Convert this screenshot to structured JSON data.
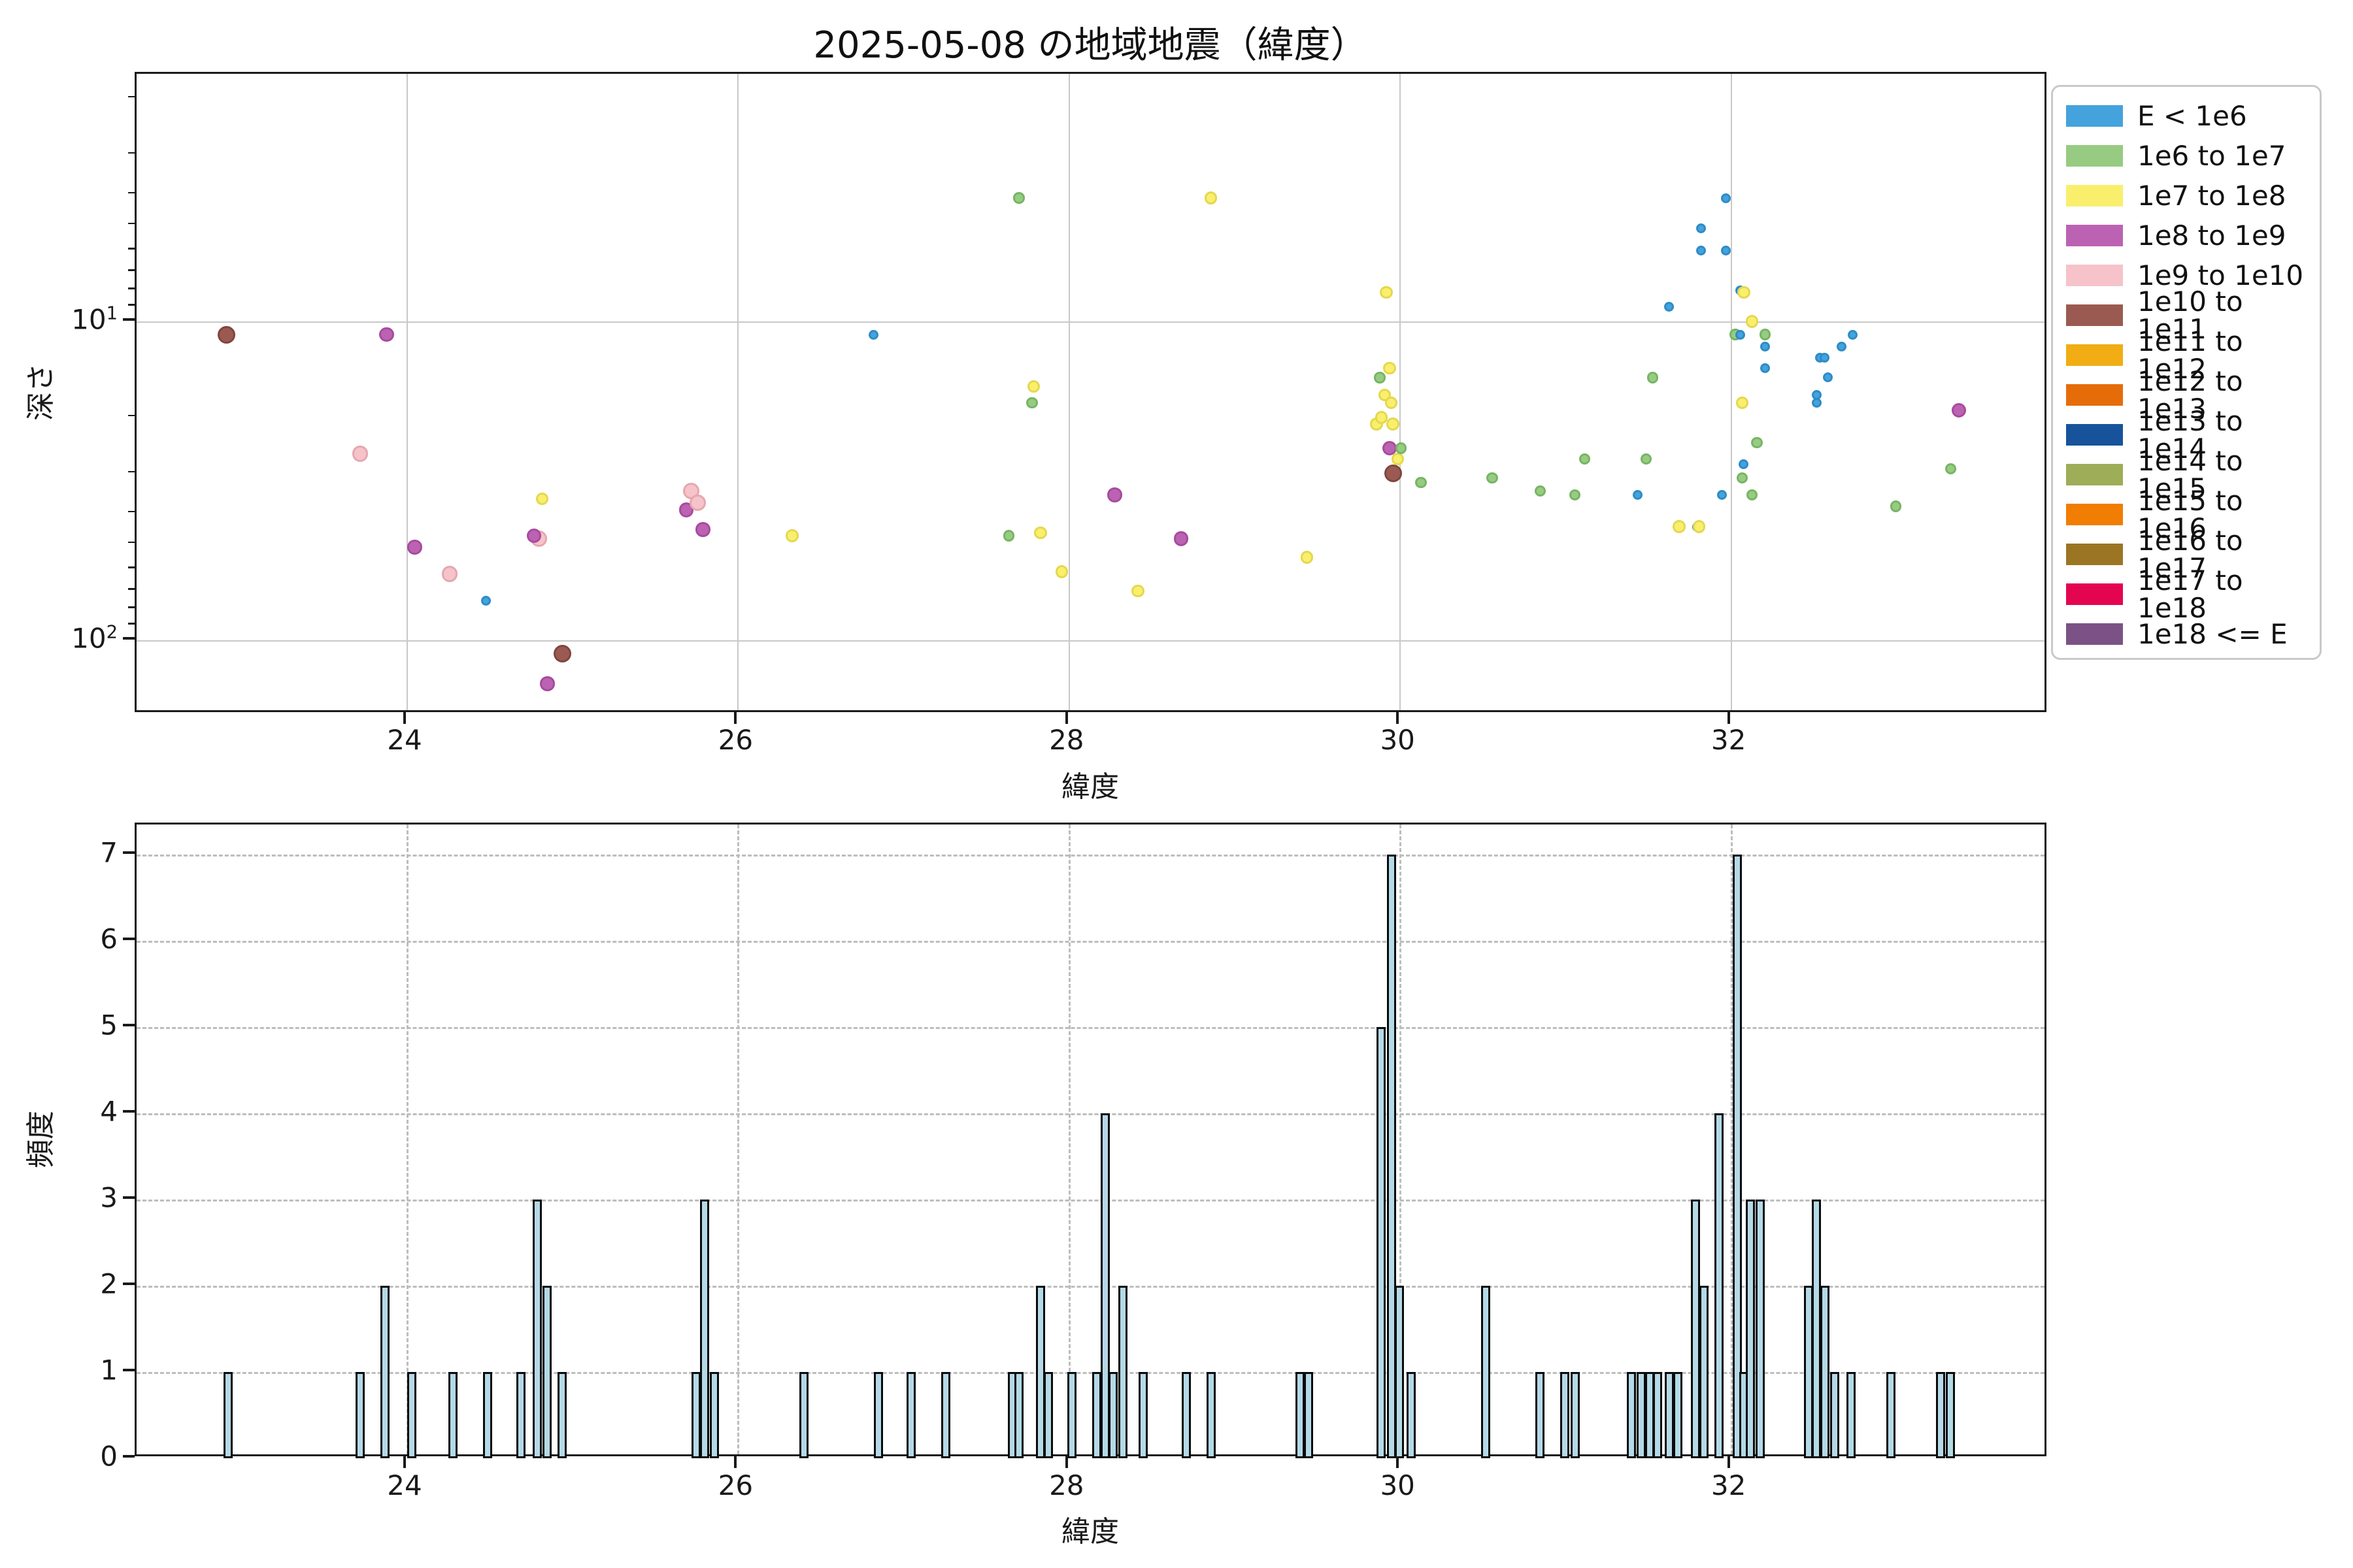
{
  "title": "2025-05-08 の地域地震（緯度）",
  "chart_data": [
    {
      "type": "scatter",
      "title": "2025-05-08 の地域地震（緯度）",
      "xlabel": "緯度",
      "ylabel": "深さ",
      "x_ticks": [
        24,
        26,
        28,
        30,
        32
      ],
      "xlim": [
        22.37,
        33.92
      ],
      "y_scale": "log",
      "y_inverted": true,
      "ylim": [
        1.67,
        170
      ],
      "y_major_ticks": [
        {
          "value": 10,
          "mantissa": "10",
          "exponent": "1"
        },
        {
          "value": 100,
          "mantissa": "10",
          "exponent": "2"
        }
      ],
      "y_minor_ticks": [
        2,
        3,
        4,
        5,
        6,
        7,
        8,
        9,
        20,
        30,
        40,
        50,
        60,
        70,
        80,
        90
      ],
      "grid": "solid",
      "legend_position": "upper right outside",
      "legend": [
        {
          "label": "E < 1e6",
          "color": "#44a2dc",
          "edge": "#2e8cc6",
          "radius": 7.5
        },
        {
          "label": "1e6 to 1e7",
          "color": "#97cb82",
          "edge": "#77b563",
          "radius": 8.7
        },
        {
          "label": "1e7 to 1e8",
          "color": "#f9ef6d",
          "edge": "#e4d84f",
          "radius": 9.8
        },
        {
          "label": "1e8 to 1e9",
          "color": "#bc62b2",
          "edge": "#a74b9d",
          "radius": 11.3
        },
        {
          "label": "1e9 to 1e10",
          "color": "#f5c3c9",
          "edge": "#e5a7af",
          "radius": 12.3
        },
        {
          "label": "1e10 to 1e11",
          "color": "#9b5a51",
          "edge": "#7f463e",
          "radius": 13.5
        },
        {
          "label": "1e11 to 1e12",
          "color": "#f1ad13",
          "edge": "#d99a00",
          "radius": 10
        },
        {
          "label": "1e12 to 1e13",
          "color": "#e66c0a",
          "edge": "#cc5d00",
          "radius": 10
        },
        {
          "label": "1e13 to 1e14",
          "color": "#17539b",
          "edge": "#114684",
          "radius": 10
        },
        {
          "label": "1e14 to 1e15",
          "color": "#9ead57",
          "edge": "#8a9a45",
          "radius": 10
        },
        {
          "label": "1e15 to 1e16",
          "color": "#f17d02",
          "edge": "#d86e00",
          "radius": 10
        },
        {
          "label": "1e16 to 1e17",
          "color": "#9b7524",
          "edge": "#84621c",
          "radius": 10
        },
        {
          "label": "1e17 to 1e18",
          "color": "#e40551",
          "edge": "#c70243",
          "radius": 10
        },
        {
          "label": "1e18 <= E",
          "color": "#7b5286",
          "edge": "#664270",
          "radius": 14
        }
      ],
      "points": [
        [
          22.91,
          11,
          5
        ],
        [
          23.72,
          26,
          4
        ],
        [
          23.88,
          11,
          3
        ],
        [
          24.05,
          51,
          3
        ],
        [
          24.26,
          62,
          4
        ],
        [
          24.48,
          75,
          0
        ],
        [
          24.8,
          48,
          4
        ],
        [
          24.77,
          47,
          3
        ],
        [
          24.82,
          36,
          2
        ],
        [
          24.85,
          137,
          3
        ],
        [
          24.94,
          110,
          5
        ],
        [
          25.69,
          39,
          3
        ],
        [
          25.72,
          34,
          4
        ],
        [
          25.76,
          37,
          4
        ],
        [
          25.79,
          45,
          3
        ],
        [
          26.33,
          47,
          2
        ],
        [
          26.82,
          11,
          0
        ],
        [
          27.64,
          47,
          1
        ],
        [
          27.7,
          4.1,
          1
        ],
        [
          27.78,
          18,
          1
        ],
        [
          27.79,
          16,
          2
        ],
        [
          27.83,
          46,
          2
        ],
        [
          27.96,
          61,
          2
        ],
        [
          28.28,
          35,
          3
        ],
        [
          28.42,
          70,
          2
        ],
        [
          28.68,
          48,
          3
        ],
        [
          28.86,
          4.1,
          2
        ],
        [
          29.44,
          55,
          2
        ],
        [
          29.86,
          21,
          2
        ],
        [
          29.88,
          15,
          1
        ],
        [
          29.89,
          20,
          2
        ],
        [
          29.91,
          17,
          2
        ],
        [
          29.92,
          8.1,
          2
        ],
        [
          29.94,
          14,
          2
        ],
        [
          29.95,
          18,
          2
        ],
        [
          29.96,
          21,
          2
        ],
        [
          29.94,
          25,
          3
        ],
        [
          29.96,
          30,
          5
        ],
        [
          29.99,
          27,
          2
        ],
        [
          30.01,
          25,
          1
        ],
        [
          30.13,
          32,
          1
        ],
        [
          30.56,
          31,
          1
        ],
        [
          30.85,
          34,
          1
        ],
        [
          31.06,
          35,
          1
        ],
        [
          31.12,
          27,
          1
        ],
        [
          31.44,
          35,
          0
        ],
        [
          31.49,
          27,
          1
        ],
        [
          31.53,
          15,
          1
        ],
        [
          31.63,
          9,
          0
        ],
        [
          31.69,
          44,
          2
        ],
        [
          31.8,
          44,
          0
        ],
        [
          31.81,
          44,
          2
        ],
        [
          31.82,
          5.1,
          0
        ],
        [
          31.82,
          6,
          0
        ],
        [
          31.95,
          35,
          0
        ],
        [
          31.97,
          4.1,
          0
        ],
        [
          31.97,
          6,
          0
        ],
        [
          32.03,
          11,
          1
        ],
        [
          32.06,
          8,
          0
        ],
        [
          32.06,
          11,
          0
        ],
        [
          32.07,
          18,
          2
        ],
        [
          32.07,
          31,
          1
        ],
        [
          32.08,
          8.1,
          2
        ],
        [
          32.08,
          28,
          0
        ],
        [
          32.13,
          10,
          2
        ],
        [
          32.13,
          35,
          1
        ],
        [
          32.16,
          24,
          1
        ],
        [
          32.21,
          11,
          1
        ],
        [
          32.21,
          12,
          0
        ],
        [
          32.21,
          14,
          0
        ],
        [
          32.52,
          17,
          0
        ],
        [
          32.52,
          18,
          0
        ],
        [
          32.54,
          13,
          0
        ],
        [
          32.57,
          13,
          0
        ],
        [
          32.59,
          15,
          0
        ],
        [
          32.67,
          12,
          0
        ],
        [
          32.74,
          11,
          0
        ],
        [
          33.0,
          38,
          1
        ],
        [
          33.33,
          29,
          1
        ],
        [
          33.38,
          19,
          3
        ]
      ]
    },
    {
      "type": "bar",
      "xlabel": "緯度",
      "ylabel": "頻度",
      "x_ticks": [
        24,
        26,
        28,
        30,
        32
      ],
      "xlim": [
        22.37,
        33.92
      ],
      "y_ticks": [
        0,
        1,
        2,
        3,
        4,
        5,
        6,
        7
      ],
      "ylim": [
        0,
        7.35
      ],
      "grid": "dashed",
      "bar_color": "#b5d9e7",
      "bar_edge": "#0a0a0a",
      "bars": [
        [
          22.92,
          1
        ],
        [
          23.72,
          1
        ],
        [
          23.87,
          2
        ],
        [
          24.03,
          1
        ],
        [
          24.28,
          1
        ],
        [
          24.49,
          1
        ],
        [
          24.69,
          1
        ],
        [
          24.79,
          3
        ],
        [
          24.85,
          2
        ],
        [
          24.94,
          1
        ],
        [
          25.75,
          1
        ],
        [
          25.8,
          3
        ],
        [
          25.86,
          1
        ],
        [
          26.4,
          1
        ],
        [
          26.85,
          1
        ],
        [
          27.05,
          1
        ],
        [
          27.26,
          1
        ],
        [
          27.66,
          1
        ],
        [
          27.7,
          1
        ],
        [
          27.83,
          2
        ],
        [
          27.88,
          1
        ],
        [
          28.02,
          1
        ],
        [
          28.17,
          1
        ],
        [
          28.22,
          4
        ],
        [
          28.27,
          1
        ],
        [
          28.33,
          2
        ],
        [
          28.45,
          1
        ],
        [
          28.71,
          1
        ],
        [
          28.86,
          1
        ],
        [
          29.4,
          1
        ],
        [
          29.45,
          1
        ],
        [
          29.89,
          5
        ],
        [
          29.95,
          7
        ],
        [
          30.0,
          2
        ],
        [
          30.07,
          1
        ],
        [
          30.52,
          2
        ],
        [
          30.85,
          1
        ],
        [
          31.0,
          1
        ],
        [
          31.06,
          1
        ],
        [
          31.4,
          1
        ],
        [
          31.46,
          1
        ],
        [
          31.51,
          1
        ],
        [
          31.56,
          1
        ],
        [
          31.63,
          1
        ],
        [
          31.68,
          1
        ],
        [
          31.79,
          3
        ],
        [
          31.84,
          2
        ],
        [
          31.93,
          4
        ],
        [
          32.04,
          7
        ],
        [
          32.08,
          1
        ],
        [
          32.12,
          3
        ],
        [
          32.18,
          3
        ],
        [
          32.47,
          2
        ],
        [
          32.52,
          3
        ],
        [
          32.57,
          2
        ],
        [
          32.63,
          1
        ],
        [
          32.73,
          1
        ],
        [
          32.97,
          1
        ],
        [
          33.27,
          1
        ],
        [
          33.33,
          1
        ]
      ]
    }
  ]
}
